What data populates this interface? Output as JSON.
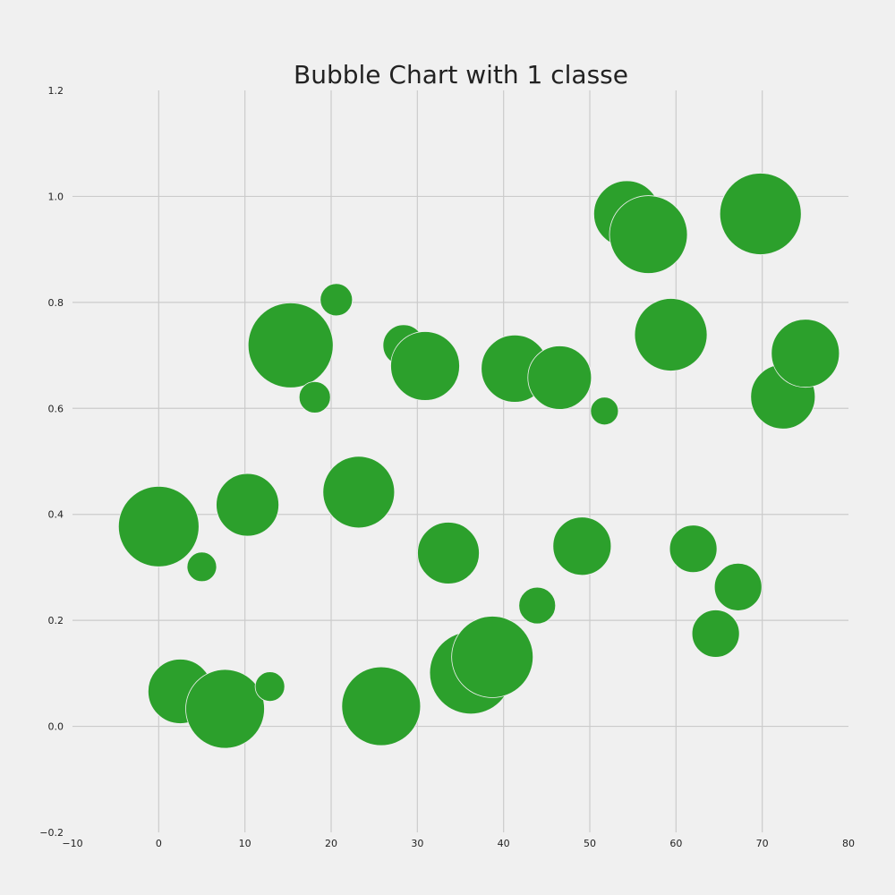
{
  "chart_data": {
    "type": "scatter",
    "title": "Bubble Chart with 1 classe",
    "xlabel": "",
    "ylabel": "",
    "xlim": [
      -10,
      80
    ],
    "ylim": [
      -0.2,
      1.2
    ],
    "grid": true,
    "color": "#2ca02c",
    "background": "#f0f0f0",
    "x_ticks": [
      -10,
      0,
      10,
      20,
      30,
      40,
      50,
      60,
      70,
      80
    ],
    "y_ticks": [
      -0.2,
      0.0,
      0.2,
      0.4,
      0.6,
      0.8,
      1.0,
      1.2
    ],
    "x_tick_labels": [
      "−10",
      "0",
      "10",
      "20",
      "30",
      "40",
      "50",
      "60",
      "70",
      "80"
    ],
    "y_tick_labels": [
      "−0.2",
      "0.0",
      "0.2",
      "0.4",
      "0.6",
      "0.8",
      "1.0",
      "1.2"
    ],
    "series": [
      {
        "points": [
          {
            "x": 0.0,
            "y": 0.377,
            "size": 90
          },
          {
            "x": 5.0,
            "y": 0.301,
            "size": 33
          },
          {
            "x": 10.3,
            "y": 0.418,
            "size": 70
          },
          {
            "x": 2.5,
            "y": 0.066,
            "size": 72
          },
          {
            "x": 7.7,
            "y": 0.033,
            "size": 88
          },
          {
            "x": 12.9,
            "y": 0.075,
            "size": 33
          },
          {
            "x": 15.3,
            "y": 0.719,
            "size": 95
          },
          {
            "x": 18.1,
            "y": 0.621,
            "size": 35
          },
          {
            "x": 20.6,
            "y": 0.805,
            "size": 36
          },
          {
            "x": 23.2,
            "y": 0.442,
            "size": 80
          },
          {
            "x": 25.8,
            "y": 0.038,
            "size": 88
          },
          {
            "x": 28.4,
            "y": 0.719,
            "size": 46
          },
          {
            "x": 30.9,
            "y": 0.68,
            "size": 77
          },
          {
            "x": 33.6,
            "y": 0.327,
            "size": 69
          },
          {
            "x": 36.2,
            "y": 0.101,
            "size": 92
          },
          {
            "x": 38.7,
            "y": 0.131,
            "size": 91
          },
          {
            "x": 41.3,
            "y": 0.675,
            "size": 75
          },
          {
            "x": 43.9,
            "y": 0.228,
            "size": 41
          },
          {
            "x": 46.5,
            "y": 0.658,
            "size": 71
          },
          {
            "x": 49.1,
            "y": 0.34,
            "size": 65
          },
          {
            "x": 51.7,
            "y": 0.595,
            "size": 31
          },
          {
            "x": 54.3,
            "y": 0.967,
            "size": 74
          },
          {
            "x": 56.8,
            "y": 0.928,
            "size": 87
          },
          {
            "x": 59.4,
            "y": 0.739,
            "size": 81
          },
          {
            "x": 62.0,
            "y": 0.335,
            "size": 53
          },
          {
            "x": 64.6,
            "y": 0.175,
            "size": 53
          },
          {
            "x": 67.2,
            "y": 0.263,
            "size": 53
          },
          {
            "x": 69.8,
            "y": 0.967,
            "size": 91
          },
          {
            "x": 72.4,
            "y": 0.622,
            "size": 72
          },
          {
            "x": 75.0,
            "y": 0.704,
            "size": 76
          }
        ]
      }
    ]
  }
}
